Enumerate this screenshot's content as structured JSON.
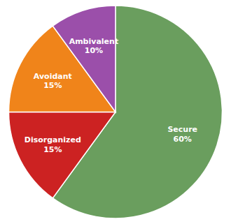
{
  "chart_data": {
    "type": "pie",
    "categories": [
      "Secure",
      "Disorganized",
      "Avoidant",
      "Ambivalent"
    ],
    "values": [
      60,
      15,
      15,
      10
    ],
    "value_labels": [
      "60%",
      "15%",
      "15%",
      "10%"
    ],
    "colors": [
      "#6a9e5e",
      "#cc2222",
      "#f0841a",
      "#9b4faa"
    ],
    "data_labels": true
  }
}
